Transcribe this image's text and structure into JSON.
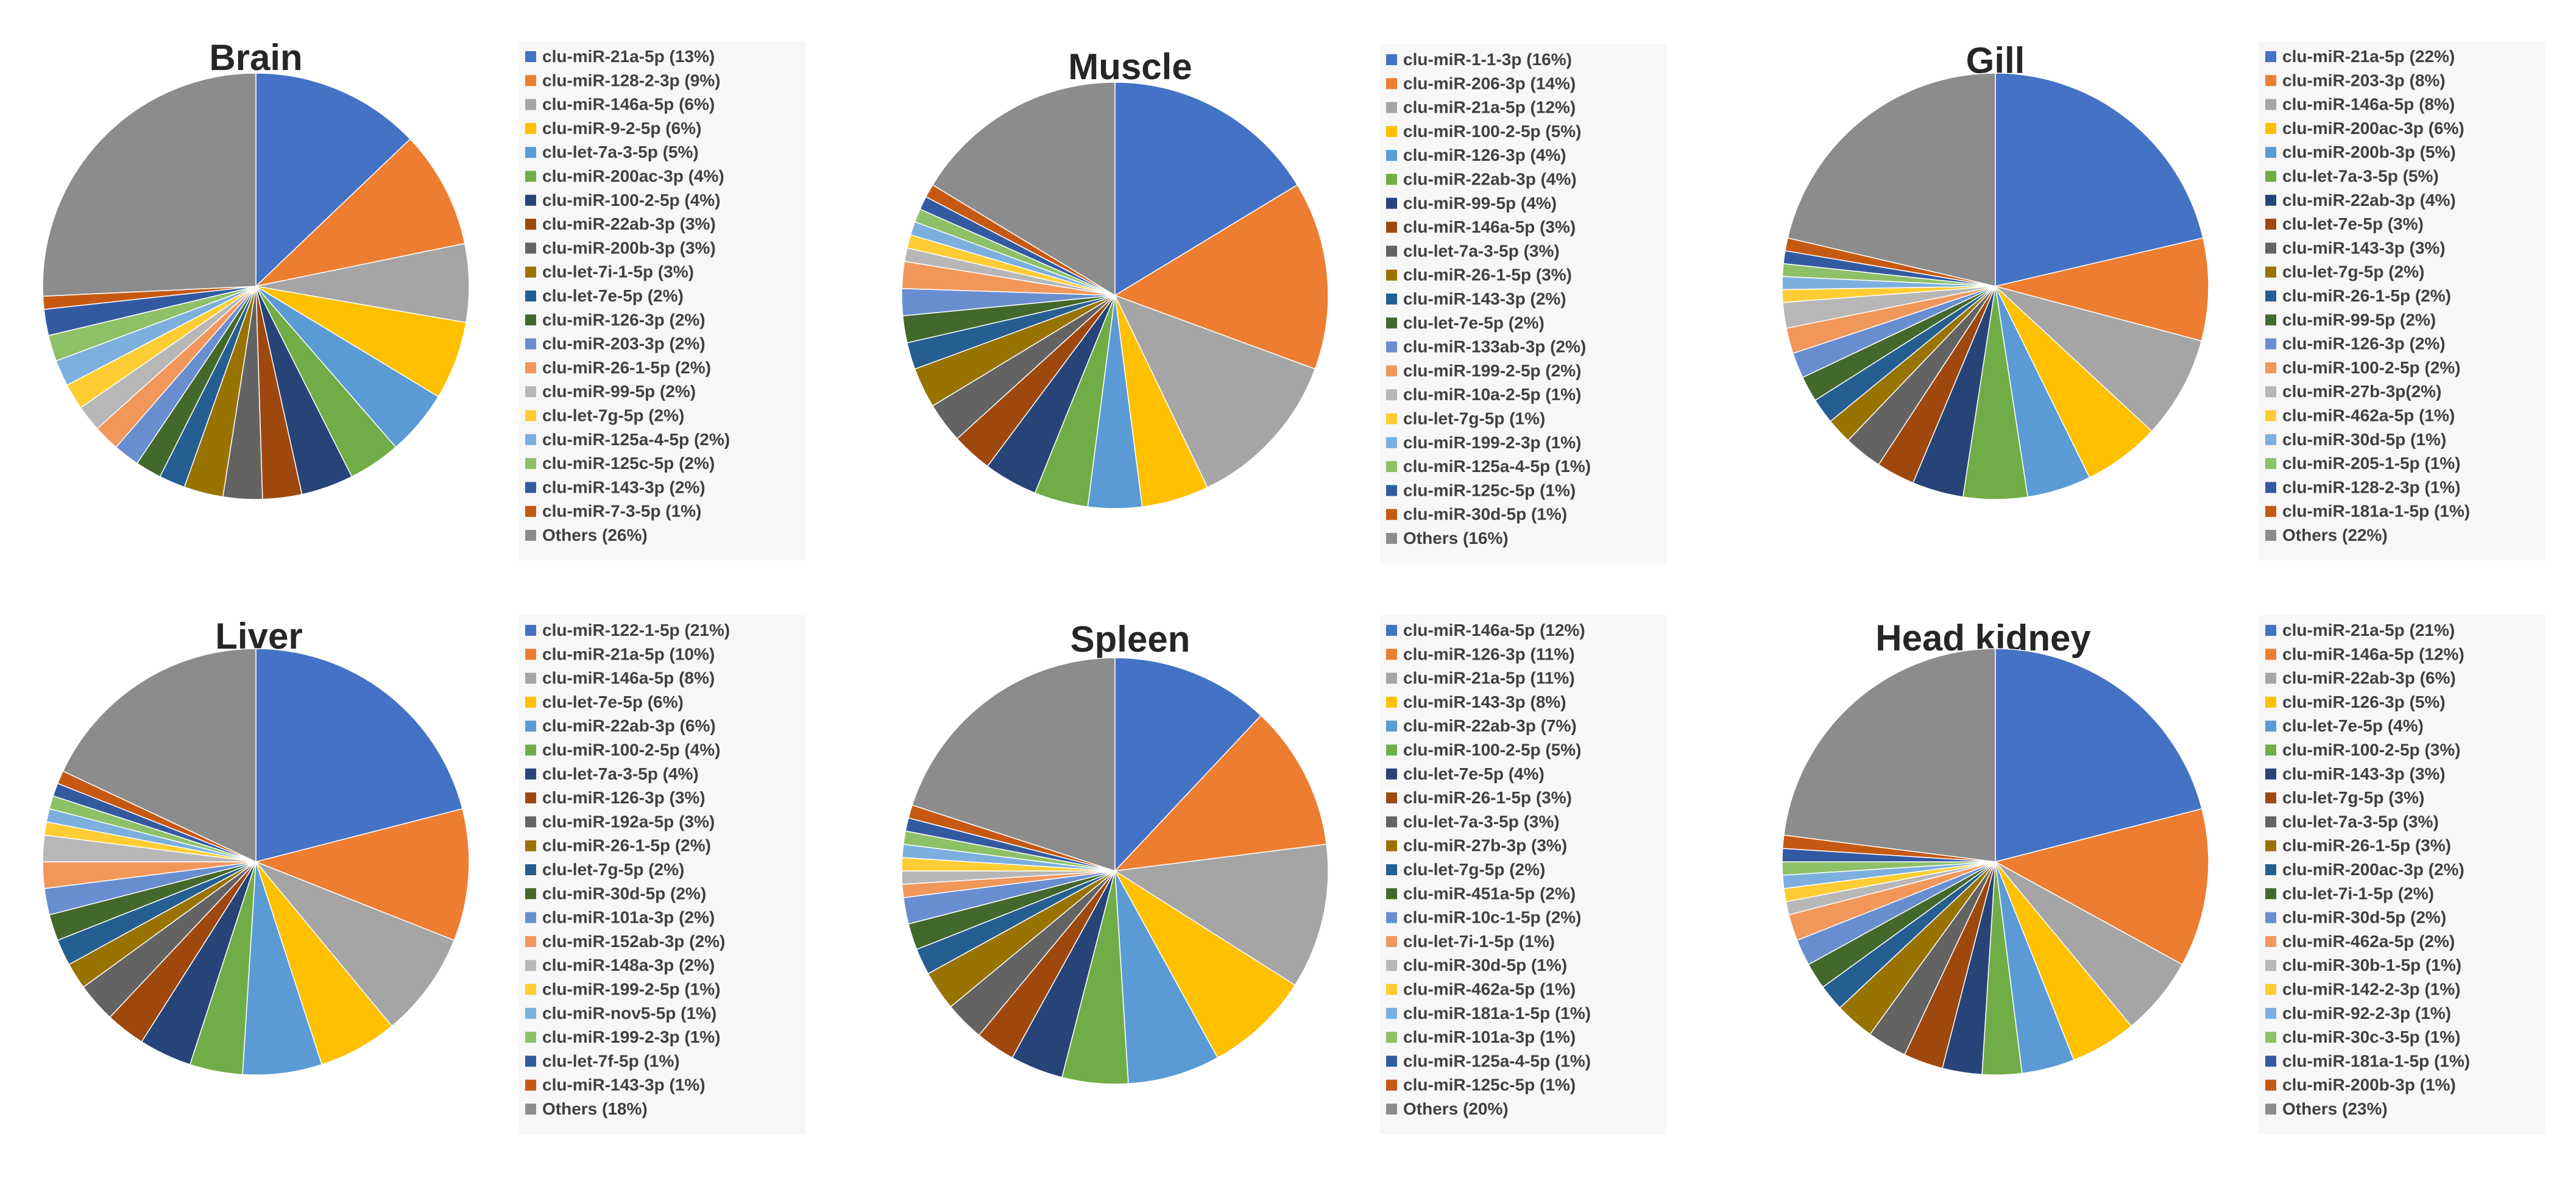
{
  "chart_data": [
    {
      "type": "pie",
      "title": "Brain",
      "start": "12 o'clock",
      "direction": "clockwise",
      "legend_position": "right",
      "slices": [
        {
          "label": "clu-miR-21a-5p (13%)",
          "value": 13,
          "color": "#4472C4"
        },
        {
          "label": "clu-miR-128-2-3p (9%)",
          "value": 9,
          "color": "#ED7D31"
        },
        {
          "label": "clu-miR-146a-5p (6%)",
          "value": 6,
          "color": "#A5A5A5"
        },
        {
          "label": "clu-miR-9-2-5p (6%)",
          "value": 6,
          "color": "#FFC000"
        },
        {
          "label": "clu-let-7a-3-5p (5%)",
          "value": 5,
          "color": "#5B9BD5"
        },
        {
          "label": "clu-miR-200ac-3p (4%)",
          "value": 4,
          "color": "#70AD47"
        },
        {
          "label": "clu-miR-100-2-5p (4%)",
          "value": 4,
          "color": "#264478"
        },
        {
          "label": "clu-miR-22ab-3p (3%)",
          "value": 3,
          "color": "#9E480E"
        },
        {
          "label": "clu-miR-200b-3p (3%)",
          "value": 3,
          "color": "#636363"
        },
        {
          "label": "clu-let-7i-1-5p (3%)",
          "value": 3,
          "color": "#997300"
        },
        {
          "label": "clu-let-7e-5p (2%)",
          "value": 2,
          "color": "#255E91"
        },
        {
          "label": "clu-miR-126-3p (2%)",
          "value": 2,
          "color": "#43682B"
        },
        {
          "label": "clu-miR-203-3p (2%)",
          "value": 2,
          "color": "#698ED0"
        },
        {
          "label": "clu-miR-26-1-5p (2%)",
          "value": 2,
          "color": "#F1975A"
        },
        {
          "label": "clu-miR-99-5p (2%)",
          "value": 2,
          "color": "#B7B7B7"
        },
        {
          "label": "clu-let-7g-5p (2%)",
          "value": 2,
          "color": "#FFCD33"
        },
        {
          "label": "clu-miR-125a-4-5p (2%)",
          "value": 2,
          "color": "#7CAFDD"
        },
        {
          "label": "clu-miR-125c-5p (2%)",
          "value": 2,
          "color": "#8CC168"
        },
        {
          "label": "clu-miR-143-3p (2%)",
          "value": 2,
          "color": "#335AA1"
        },
        {
          "label": "clu-miR-7-3-5p (1%)",
          "value": 1,
          "color": "#C65911"
        },
        {
          "label": "Others (26%)",
          "value": 26,
          "color": "#8C8C8C"
        }
      ]
    },
    {
      "type": "pie",
      "title": "Muscle",
      "start": "12 o'clock",
      "direction": "clockwise",
      "legend_position": "right",
      "slices": [
        {
          "label": "clu-miR-1-1-3p (16%)",
          "value": 16,
          "color": "#4472C4"
        },
        {
          "label": "clu-miR-206-3p (14%)",
          "value": 14,
          "color": "#ED7D31"
        },
        {
          "label": "clu-miR-21a-5p (12%)",
          "value": 12,
          "color": "#A5A5A5"
        },
        {
          "label": "clu-miR-100-2-5p (5%)",
          "value": 5,
          "color": "#FFC000"
        },
        {
          "label": "clu-miR-126-3p (4%)",
          "value": 4,
          "color": "#5B9BD5"
        },
        {
          "label": "clu-miR-22ab-3p (4%)",
          "value": 4,
          "color": "#70AD47"
        },
        {
          "label": "clu-miR-99-5p (4%)",
          "value": 4,
          "color": "#264478"
        },
        {
          "label": "clu-miR-146a-5p (3%)",
          "value": 3,
          "color": "#9E480E"
        },
        {
          "label": "clu-let-7a-3-5p (3%)",
          "value": 3,
          "color": "#636363"
        },
        {
          "label": "clu-miR-26-1-5p (3%)",
          "value": 3,
          "color": "#997300"
        },
        {
          "label": "clu-miR-143-3p (2%)",
          "value": 2,
          "color": "#255E91"
        },
        {
          "label": "clu-let-7e-5p (2%)",
          "value": 2,
          "color": "#43682B"
        },
        {
          "label": "clu-miR-133ab-3p (2%)",
          "value": 2,
          "color": "#698ED0"
        },
        {
          "label": "clu-miR-199-2-5p (2%)",
          "value": 2,
          "color": "#F1975A"
        },
        {
          "label": "clu-miR-10a-2-5p (1%)",
          "value": 1,
          "color": "#B7B7B7"
        },
        {
          "label": "clu-let-7g-5p (1%)",
          "value": 1,
          "color": "#FFCD33"
        },
        {
          "label": "clu-miR-199-2-3p (1%)",
          "value": 1,
          "color": "#7CAFDD"
        },
        {
          "label": "clu-miR-125a-4-5p (1%)",
          "value": 1,
          "color": "#8CC168"
        },
        {
          "label": "clu-miR-125c-5p (1%)",
          "value": 1,
          "color": "#335AA1"
        },
        {
          "label": "clu-miR-30d-5p (1%)",
          "value": 1,
          "color": "#C65911"
        },
        {
          "label": "Others (16%)",
          "value": 16,
          "color": "#8C8C8C"
        }
      ]
    },
    {
      "type": "pie",
      "title": "Gill",
      "start": "12 o'clock",
      "direction": "clockwise",
      "legend_position": "right",
      "slices": [
        {
          "label": "clu-miR-21a-5p (22%)",
          "value": 22,
          "color": "#4472C4"
        },
        {
          "label": "clu-miR-203-3p (8%)",
          "value": 8,
          "color": "#ED7D31"
        },
        {
          "label": "clu-miR-146a-5p (8%)",
          "value": 8,
          "color": "#A5A5A5"
        },
        {
          "label": "clu-miR-200ac-3p (6%)",
          "value": 6,
          "color": "#FFC000"
        },
        {
          "label": "clu-miR-200b-3p (5%)",
          "value": 5,
          "color": "#5B9BD5"
        },
        {
          "label": "clu-let-7a-3-5p (5%)",
          "value": 5,
          "color": "#70AD47"
        },
        {
          "label": "clu-miR-22ab-3p (4%)",
          "value": 4,
          "color": "#264478"
        },
        {
          "label": "clu-let-7e-5p (3%)",
          "value": 3,
          "color": "#9E480E"
        },
        {
          "label": "clu-miR-143-3p (3%)",
          "value": 3,
          "color": "#636363"
        },
        {
          "label": "clu-let-7g-5p (2%)",
          "value": 2,
          "color": "#997300"
        },
        {
          "label": "clu-miR-26-1-5p (2%)",
          "value": 2,
          "color": "#255E91"
        },
        {
          "label": "clu-miR-99-5p (2%)",
          "value": 2,
          "color": "#43682B"
        },
        {
          "label": "clu-miR-126-3p (2%)",
          "value": 2,
          "color": "#698ED0"
        },
        {
          "label": "clu-miR-100-2-5p (2%)",
          "value": 2,
          "color": "#F1975A"
        },
        {
          "label": "clu-miR-27b-3p(2%)",
          "value": 2,
          "color": "#B7B7B7"
        },
        {
          "label": "clu-miR-462a-5p (1%)",
          "value": 1,
          "color": "#FFCD33"
        },
        {
          "label": "clu-miR-30d-5p (1%)",
          "value": 1,
          "color": "#7CAFDD"
        },
        {
          "label": "clu-miR-205-1-5p (1%)",
          "value": 1,
          "color": "#8CC168"
        },
        {
          "label": "clu-miR-128-2-3p (1%)",
          "value": 1,
          "color": "#335AA1"
        },
        {
          "label": "clu-miR-181a-1-5p (1%)",
          "value": 1,
          "color": "#C65911"
        },
        {
          "label": "Others (22%)",
          "value": 22,
          "color": "#8C8C8C"
        }
      ]
    },
    {
      "type": "pie",
      "title": "Liver",
      "start": "12 o'clock",
      "direction": "clockwise",
      "legend_position": "right",
      "slices": [
        {
          "label": "clu-miR-122-1-5p (21%)",
          "value": 21,
          "color": "#4472C4"
        },
        {
          "label": "clu-miR-21a-5p (10%)",
          "value": 10,
          "color": "#ED7D31"
        },
        {
          "label": "clu-miR-146a-5p (8%)",
          "value": 8,
          "color": "#A5A5A5"
        },
        {
          "label": "clu-let-7e-5p (6%)",
          "value": 6,
          "color": "#FFC000"
        },
        {
          "label": "clu-miR-22ab-3p (6%)",
          "value": 6,
          "color": "#5B9BD5"
        },
        {
          "label": "clu-miR-100-2-5p (4%)",
          "value": 4,
          "color": "#70AD47"
        },
        {
          "label": "clu-let-7a-3-5p (4%)",
          "value": 4,
          "color": "#264478"
        },
        {
          "label": "clu-miR-126-3p (3%)",
          "value": 3,
          "color": "#9E480E"
        },
        {
          "label": "clu-miR-192a-5p (3%)",
          "value": 3,
          "color": "#636363"
        },
        {
          "label": "clu-miR-26-1-5p (2%)",
          "value": 2,
          "color": "#997300"
        },
        {
          "label": "clu-let-7g-5p (2%)",
          "value": 2,
          "color": "#255E91"
        },
        {
          "label": "clu-miR-30d-5p (2%)",
          "value": 2,
          "color": "#43682B"
        },
        {
          "label": "clu-miR-101a-3p (2%)",
          "value": 2,
          "color": "#698ED0"
        },
        {
          "label": "clu-miR-152ab-3p (2%)",
          "value": 2,
          "color": "#F1975A"
        },
        {
          "label": "clu-miR-148a-3p (2%)",
          "value": 2,
          "color": "#B7B7B7"
        },
        {
          "label": "clu-miR-199-2-5p (1%)",
          "value": 1,
          "color": "#FFCD33"
        },
        {
          "label": "clu-miR-nov5-5p (1%)",
          "value": 1,
          "color": "#7CAFDD"
        },
        {
          "label": "clu-miR-199-2-3p (1%)",
          "value": 1,
          "color": "#8CC168"
        },
        {
          "label": "clu-let-7f-5p (1%)",
          "value": 1,
          "color": "#335AA1"
        },
        {
          "label": "clu-miR-143-3p (1%)",
          "value": 1,
          "color": "#C65911"
        },
        {
          "label": "Others (18%)",
          "value": 18,
          "color": "#8C8C8C"
        }
      ]
    },
    {
      "type": "pie",
      "title": "Spleen",
      "start": "12 o'clock",
      "direction": "clockwise",
      "legend_position": "right",
      "slices": [
        {
          "label": "clu-miR-146a-5p (12%)",
          "value": 12,
          "color": "#4472C4"
        },
        {
          "label": "clu-miR-126-3p (11%)",
          "value": 11,
          "color": "#ED7D31"
        },
        {
          "label": "clu-miR-21a-5p (11%)",
          "value": 11,
          "color": "#A5A5A5"
        },
        {
          "label": "clu-miR-143-3p (8%)",
          "value": 8,
          "color": "#FFC000"
        },
        {
          "label": "clu-miR-22ab-3p (7%)",
          "value": 7,
          "color": "#5B9BD5"
        },
        {
          "label": "clu-miR-100-2-5p (5%)",
          "value": 5,
          "color": "#70AD47"
        },
        {
          "label": "clu-let-7e-5p (4%)",
          "value": 4,
          "color": "#264478"
        },
        {
          "label": "clu-miR-26-1-5p (3%)",
          "value": 3,
          "color": "#9E480E"
        },
        {
          "label": "clu-let-7a-3-5p (3%)",
          "value": 3,
          "color": "#636363"
        },
        {
          "label": "clu-miR-27b-3p (3%)",
          "value": 3,
          "color": "#997300"
        },
        {
          "label": "clu-let-7g-5p (2%)",
          "value": 2,
          "color": "#255E91"
        },
        {
          "label": "clu-miR-451a-5p (2%)",
          "value": 2,
          "color": "#43682B"
        },
        {
          "label": "clu-miR-10c-1-5p (2%)",
          "value": 2,
          "color": "#698ED0"
        },
        {
          "label": "clu-let-7i-1-5p (1%)",
          "value": 1,
          "color": "#F1975A"
        },
        {
          "label": "clu-miR-30d-5p (1%)",
          "value": 1,
          "color": "#B7B7B7"
        },
        {
          "label": "clu-miR-462a-5p (1%)",
          "value": 1,
          "color": "#FFCD33"
        },
        {
          "label": "clu-miR-181a-1-5p (1%)",
          "value": 1,
          "color": "#7CAFDD"
        },
        {
          "label": "clu-miR-101a-3p (1%)",
          "value": 1,
          "color": "#8CC168"
        },
        {
          "label": "clu-miR-125a-4-5p (1%)",
          "value": 1,
          "color": "#335AA1"
        },
        {
          "label": "clu-miR-125c-5p (1%)",
          "value": 1,
          "color": "#C65911"
        },
        {
          "label": "Others (20%)",
          "value": 20,
          "color": "#8C8C8C"
        }
      ]
    },
    {
      "type": "pie",
      "title": "Head kidney",
      "start": "12 o'clock",
      "direction": "clockwise",
      "legend_position": "right",
      "slices": [
        {
          "label": "clu-miR-21a-5p (21%)",
          "value": 21,
          "color": "#4472C4"
        },
        {
          "label": "clu-miR-146a-5p (12%)",
          "value": 12,
          "color": "#ED7D31"
        },
        {
          "label": "clu-miR-22ab-3p (6%)",
          "value": 6,
          "color": "#A5A5A5"
        },
        {
          "label": "clu-miR-126-3p (5%)",
          "value": 5,
          "color": "#FFC000"
        },
        {
          "label": "clu-let-7e-5p (4%)",
          "value": 4,
          "color": "#5B9BD5"
        },
        {
          "label": "clu-miR-100-2-5p (3%)",
          "value": 3,
          "color": "#70AD47"
        },
        {
          "label": "clu-miR-143-3p (3%)",
          "value": 3,
          "color": "#264478"
        },
        {
          "label": "clu-let-7g-5p (3%)",
          "value": 3,
          "color": "#9E480E"
        },
        {
          "label": "clu-let-7a-3-5p (3%)",
          "value": 3,
          "color": "#636363"
        },
        {
          "label": "clu-miR-26-1-5p (3%)",
          "value": 3,
          "color": "#997300"
        },
        {
          "label": "clu-miR-200ac-3p (2%)",
          "value": 2,
          "color": "#255E91"
        },
        {
          "label": "clu-let-7i-1-5p (2%)",
          "value": 2,
          "color": "#43682B"
        },
        {
          "label": "clu-miR-30d-5p (2%)",
          "value": 2,
          "color": "#698ED0"
        },
        {
          "label": "clu-miR-462a-5p (2%)",
          "value": 2,
          "color": "#F1975A"
        },
        {
          "label": "clu-miR-30b-1-5p (1%)",
          "value": 1,
          "color": "#B7B7B7"
        },
        {
          "label": "clu-miR-142-2-3p (1%)",
          "value": 1,
          "color": "#FFCD33"
        },
        {
          "label": "clu-miR-92-2-3p (1%)",
          "value": 1,
          "color": "#7CAFDD"
        },
        {
          "label": "clu-miR-30c-3-5p (1%)",
          "value": 1,
          "color": "#8CC168"
        },
        {
          "label": "clu-miR-181a-1-5p (1%)",
          "value": 1,
          "color": "#335AA1"
        },
        {
          "label": "clu-miR-200b-3p (1%)",
          "value": 1,
          "color": "#C65911"
        },
        {
          "label": "Others (23%)",
          "value": 23,
          "color": "#8C8C8C"
        }
      ]
    }
  ]
}
